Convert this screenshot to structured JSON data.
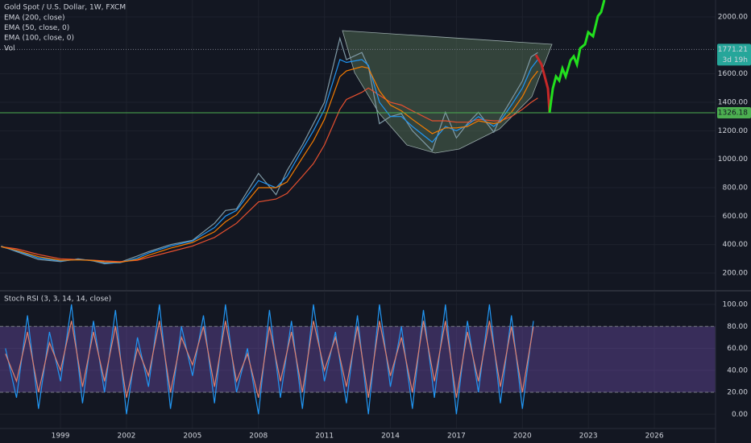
{
  "chart_data": [
    {
      "type": "line",
      "title": "Gold Spot / U.S. Dollar, 1W, FXCM",
      "volume_label": "Vol",
      "x": [
        1996.3,
        1997,
        1998,
        1999,
        1999.8,
        2000.5,
        2001,
        2001.7,
        2002.5,
        2003,
        2004,
        2005,
        2006,
        2006.5,
        2007,
        2008,
        2008.8,
        2009.3,
        2010,
        2010.5,
        2011,
        2011.7,
        2012,
        2012.7,
        2013,
        2013.5,
        2014,
        2014.5,
        2015,
        2015.9,
        2016.5,
        2017,
        2017.5,
        2018,
        2018.7,
        2019,
        2019.5,
        2020,
        2020.4,
        2020.7
      ],
      "series": [
        {
          "color": "#7f9aa6",
          "values": [
            390,
            350,
            295,
            280,
            300,
            285,
            265,
            275,
            320,
            350,
            400,
            430,
            550,
            640,
            650,
            900,
            750,
            920,
            1100,
            1250,
            1400,
            1850,
            1700,
            1750,
            1650,
            1250,
            1300,
            1320,
            1200,
            1060,
            1330,
            1150,
            1250,
            1330,
            1190,
            1290,
            1420,
            1550,
            1720,
            1750
          ]
        },
        {
          "name": "EMA (200, close)",
          "color": "#e8502f",
          "values": [
            385,
            370,
            330,
            300,
            295,
            290,
            285,
            280,
            290,
            310,
            350,
            390,
            450,
            500,
            550,
            700,
            720,
            760,
            880,
            970,
            1100,
            1350,
            1420,
            1470,
            1500,
            1450,
            1400,
            1380,
            1340,
            1270,
            1270,
            1260,
            1260,
            1280,
            1270,
            1270,
            1300,
            1350,
            1400,
            1430
          ]
        },
        {
          "name": "EMA (50, close, 0)",
          "color": "#2196f3",
          "values": [
            385,
            355,
            305,
            285,
            295,
            288,
            272,
            272,
            305,
            340,
            390,
            425,
            520,
            600,
            640,
            850,
            800,
            880,
            1070,
            1200,
            1350,
            1700,
            1680,
            1700,
            1660,
            1400,
            1300,
            1300,
            1230,
            1120,
            1230,
            1200,
            1240,
            1300,
            1230,
            1270,
            1380,
            1500,
            1640,
            1700
          ]
        },
        {
          "name": "EMA (100, close, 0)",
          "color": "#f57c00",
          "values": [
            385,
            360,
            315,
            290,
            292,
            288,
            278,
            275,
            295,
            325,
            375,
            415,
            490,
            560,
            610,
            800,
            800,
            840,
            1010,
            1130,
            1280,
            1580,
            1620,
            1650,
            1640,
            1480,
            1380,
            1340,
            1280,
            1180,
            1220,
            1220,
            1230,
            1270,
            1250,
            1260,
            1330,
            1440,
            1560,
            1620
          ]
        }
      ],
      "xlim": [
        1996.25,
        2028.78
      ],
      "xticks": [
        1999,
        2002,
        2005,
        2008,
        2011,
        2014,
        2017,
        2020,
        2023,
        2026
      ],
      "ylim": [
        81,
        2119
      ],
      "yticks": [
        {
          "value": 200,
          "label": "200.00"
        },
        {
          "value": 400,
          "label": "400.00"
        },
        {
          "value": 600,
          "label": "600.00"
        },
        {
          "value": 800,
          "label": "800.00"
        },
        {
          "value": 1000,
          "label": "1000.00"
        },
        {
          "value": 1200,
          "label": "1200.00"
        },
        {
          "value": 1400,
          "label": "1400.00"
        },
        {
          "value": 1600,
          "label": "1600.00"
        },
        {
          "value": 2000,
          "label": "2000.00"
        }
      ],
      "hline": {
        "value": 1326.18,
        "label": "1326.18",
        "color": "#4caf50"
      },
      "last_price": {
        "value": 1771.21,
        "label": "1771.21",
        "countdown": "3d 19h",
        "color": "#26a69a"
      }
    },
    {
      "type": "line",
      "title": "Stoch RSI (3, 3, 14, 14, close)",
      "x": [
        1996.5,
        1997,
        1997.5,
        1998,
        1998.5,
        1999,
        1999.5,
        2000,
        2000.5,
        2001,
        2001.5,
        2002,
        2002.5,
        2003,
        2003.5,
        2004,
        2004.5,
        2005,
        2005.5,
        2006,
        2006.5,
        2007,
        2007.5,
        2008,
        2008.5,
        2009,
        2009.5,
        2010,
        2010.5,
        2011,
        2011.5,
        2012,
        2012.5,
        2013,
        2013.5,
        2014,
        2014.5,
        2015,
        2015.5,
        2016,
        2016.5,
        2017,
        2017.5,
        2018,
        2018.5,
        2019,
        2019.5,
        2020,
        2020.5
      ],
      "series": [
        {
          "color": "#2196f3",
          "values": [
            60,
            15,
            90,
            5,
            75,
            30,
            100,
            10,
            85,
            20,
            95,
            0,
            70,
            25,
            100,
            5,
            80,
            35,
            90,
            10,
            100,
            20,
            60,
            0,
            95,
            15,
            85,
            5,
            100,
            30,
            75,
            10,
            90,
            0,
            100,
            25,
            80,
            5,
            95,
            15,
            100,
            0,
            85,
            20,
            100,
            10,
            90,
            5,
            85
          ]
        },
        {
          "color": "#e0806e",
          "values": [
            55,
            30,
            75,
            20,
            65,
            40,
            85,
            25,
            75,
            30,
            80,
            15,
            60,
            35,
            85,
            20,
            70,
            45,
            80,
            25,
            85,
            30,
            55,
            15,
            80,
            30,
            75,
            20,
            85,
            40,
            70,
            25,
            80,
            15,
            85,
            35,
            70,
            20,
            85,
            30,
            85,
            15,
            75,
            30,
            85,
            25,
            80,
            20,
            80
          ]
        }
      ],
      "xlim": [
        1996.25,
        2028.78
      ],
      "ylim": [
        -13,
        111
      ],
      "yticks": [
        {
          "value": 0,
          "label": "0.00"
        },
        {
          "value": 20,
          "label": "20.00"
        },
        {
          "value": 40,
          "label": "40.00"
        },
        {
          "value": 60,
          "label": "60.00"
        },
        {
          "value": 80,
          "label": "80.00"
        },
        {
          "value": 100,
          "label": "100.00"
        }
      ],
      "band": [
        20,
        80
      ],
      "band_color": "#7e57c2"
    }
  ]
}
